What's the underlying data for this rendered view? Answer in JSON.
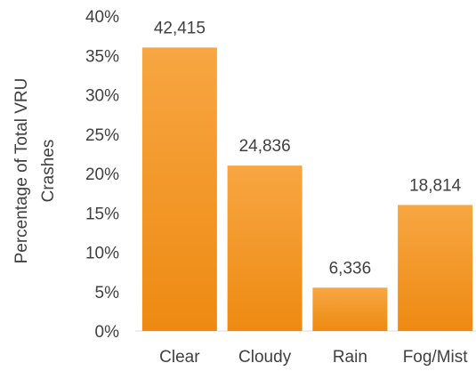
{
  "chart_data": {
    "type": "bar",
    "title": "",
    "xlabel": "",
    "ylabel_lines": [
      "Percentage of Total VRU",
      "Crashes"
    ],
    "categories": [
      "Clear",
      "Cloudy",
      "Rain",
      "Fog/Mist"
    ],
    "values": [
      36,
      21,
      5.5,
      16
    ],
    "data_labels": [
      "42,415",
      "24,836",
      "6,336",
      "18,814"
    ],
    "ylim": [
      0,
      40
    ],
    "yticks": [
      {
        "value": 0,
        "label": "0%"
      },
      {
        "value": 5,
        "label": "5%"
      },
      {
        "value": 10,
        "label": "10%"
      },
      {
        "value": 15,
        "label": "15%"
      },
      {
        "value": 20,
        "label": "20%"
      },
      {
        "value": 25,
        "label": "25%"
      },
      {
        "value": 30,
        "label": "30%"
      },
      {
        "value": 35,
        "label": "35%"
      },
      {
        "value": 40,
        "label": "40%"
      }
    ],
    "grid": false,
    "legend": "none",
    "bar_color_top": "#f7a642",
    "bar_color_bottom": "#ee8a12"
  }
}
